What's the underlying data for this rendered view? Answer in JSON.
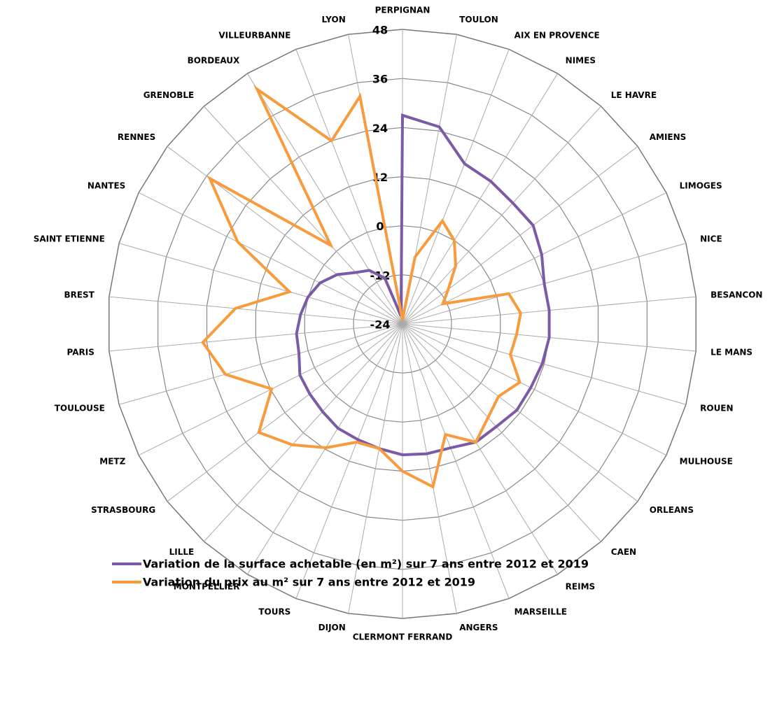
{
  "chart_data": {
    "type": "radar",
    "categories": [
      "PERPIGNAN",
      "TOULON",
      "AIX EN PROVENCE",
      "NIMES",
      "LE HAVRE",
      "AMIENS",
      "LIMOGES",
      "NICE",
      "BESANCON",
      "LE MANS",
      "ROUEN",
      "MULHOUSE",
      "ORLEANS",
      "CAEN",
      "REIMS",
      "MARSEILLE",
      "ANGERS",
      "CLERMONT FERRAND",
      "DIJON",
      "TOURS",
      "MONTPELLIER",
      "LILLE",
      "STRASBOURG",
      "METZ",
      "TOULOUSE",
      "PARIS",
      "BREST",
      "SAINT ETIENNE",
      "NANTES",
      "RENNES",
      "GRENOBLE",
      "BORDEAUX",
      "VILLEURBANNE",
      "LYON"
    ],
    "series": [
      {
        "name": "Variation de la surface achetable (en m²) sur 7 ans entre 2012 et 2019",
        "color": "#7b5aa6",
        "values": [
          27,
          25,
          18,
          17,
          16,
          16,
          14,
          12,
          12,
          12,
          11.5,
          11,
          11,
          10,
          10,
          8.5,
          8.3,
          8,
          7,
          6.3,
          6,
          5,
          4.4,
          4,
          2.3,
          2,
          1,
          0,
          -1.5,
          -4,
          -7,
          -8.6,
          -12,
          -22
        ]
      },
      {
        "name": "Variation du prix au m² sur 7 ans entre 2012 et 2019",
        "color": "#f79b3e",
        "values": [
          -23,
          -7.4,
          3,
          0,
          -4.7,
          -10,
          -13,
          3,
          5,
          4,
          3.4,
          8,
          5.4,
          7,
          10,
          5,
          16.5,
          12,
          7,
          7,
          11.6,
          16,
          20,
          11.7,
          21,
          25,
          17,
          4.7,
          21,
          35,
          2,
          43.5,
          24,
          32.6
        ]
      }
    ],
    "ylim": [
      -24,
      48
    ],
    "yticks": [
      -24,
      -12,
      0,
      12,
      24,
      36,
      48
    ]
  }
}
